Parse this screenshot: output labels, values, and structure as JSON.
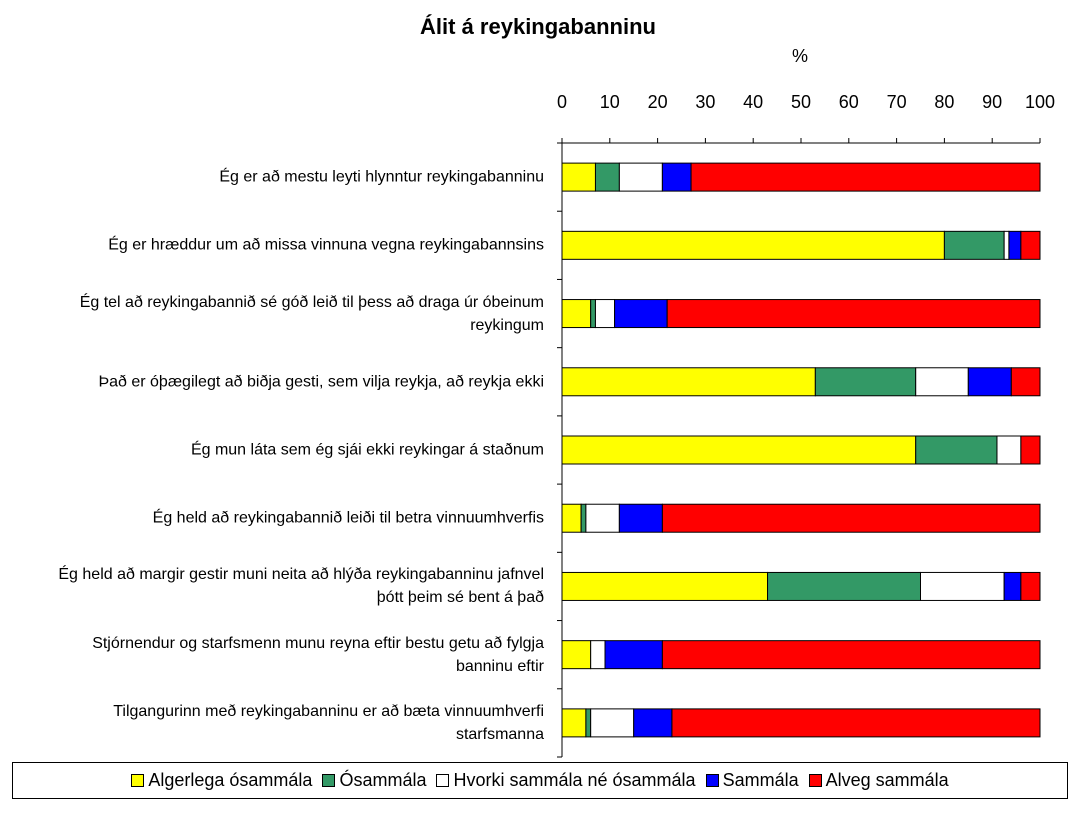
{
  "chart_data": {
    "type": "stacked-barh",
    "title": "Álit á reykingabanninu",
    "xlabel": "%",
    "categories": [
      "Ég er að mestu leyti hlynntur reykingabanninu",
      "Ég er hræddur um að missa vinnuna vegna reykingabannsins",
      "Ég tel að reykingabannið sé góð leið til þess að draga úr óbeinum reykingum",
      "Það er óþægilegt að biðja gesti, sem vilja reykja, að reykja ekki",
      "Ég mun láta sem ég sjái ekki reykingar á staðnum",
      "Ég held að reykingabannið leiði til betra vinnuumhverfis",
      "Ég held að margir gestir muni neita að hlýða reykingabanninu jafnvel þótt þeim sé bent á það",
      "Stjórnendur og starfsmenn munu reyna eftir bestu getu að fylgja banninu eftir",
      "Tilgangurinn með reykingabanninu er að bæta vinnuumhverfi starfsmanna"
    ],
    "series": [
      {
        "name": "Algerlega ósammála",
        "color": "#ffff00",
        "values": [
          7,
          80,
          6,
          53,
          74,
          4,
          43,
          6,
          5
        ]
      },
      {
        "name": "Ósammála",
        "color": "#339966",
        "values": [
          5,
          12.5,
          1,
          21,
          17,
          1,
          32,
          0,
          1
        ]
      },
      {
        "name": "Hvorki sammála né ósammála",
        "color": "#ffffff",
        "values": [
          9,
          1,
          4,
          11,
          5,
          7,
          17.5,
          3,
          9
        ]
      },
      {
        "name": "Sammála",
        "color": "#0000ff",
        "values": [
          6,
          2.5,
          11,
          9,
          0,
          9,
          3.5,
          12,
          8
        ]
      },
      {
        "name": "Alveg sammála",
        "color": "#ff0000",
        "values": [
          73,
          4,
          78,
          6,
          4,
          79,
          4,
          79,
          77
        ]
      }
    ],
    "xlim": [
      0,
      100
    ],
    "xticks": [
      0,
      10,
      20,
      30,
      40,
      50,
      60,
      70,
      80,
      90,
      100
    ],
    "legend": "bottom"
  }
}
